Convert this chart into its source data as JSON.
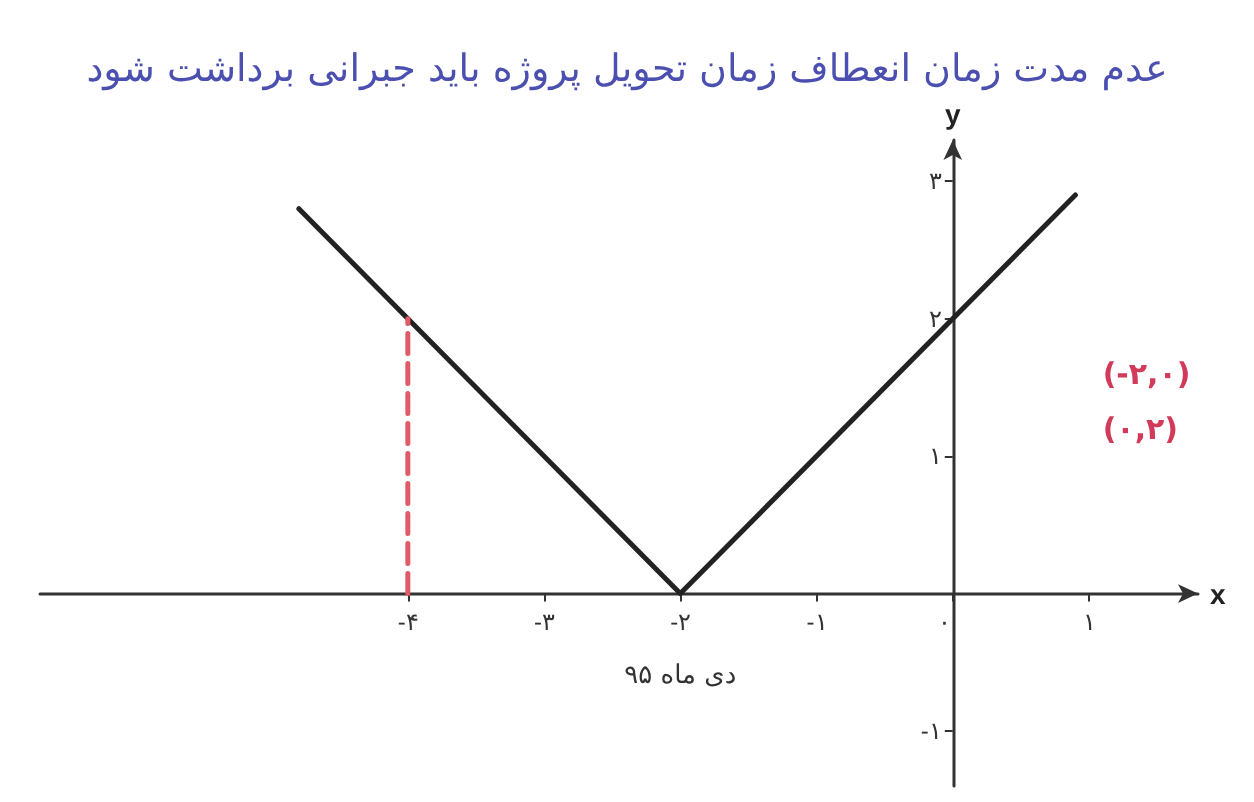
{
  "chart_data": {
    "type": "line",
    "title": "عدم مدت زمان انعطاف زمان تحویل پروژه باید جبرانی برداشت شود",
    "xlabel": "x",
    "ylabel": "y",
    "annotations": [
      "دی ماه ۹۵",
      "(-۲,۰)",
      "(۰,۲)"
    ],
    "series": [
      {
        "color": "#222222",
        "x": [
          -4.8,
          -2,
          0.9
        ],
        "values": [
          2.8,
          0,
          2.9
        ]
      },
      {
        "color": "#e05a6a",
        "x": [
          -4,
          -4
        ],
        "values": [
          0,
          2
        ],
        "line_style": "dashed"
      }
    ],
    "xlim": [
      -6.7,
      1.8
    ],
    "ylim": [
      -1.4,
      3.3
    ],
    "xticks": [
      {
        "value": -4,
        "label": "-۴"
      },
      {
        "value": -3,
        "label": "-۳"
      },
      {
        "value": -2,
        "label": "-۲"
      },
      {
        "value": -1,
        "label": "-۱"
      },
      {
        "value": 0,
        "label": "۰"
      },
      {
        "value": 1,
        "label": "۱"
      }
    ],
    "yticks": [
      {
        "value": -1,
        "label": "-۱"
      },
      {
        "value": 1,
        "label": "۱"
      },
      {
        "value": 2,
        "label": "۲"
      },
      {
        "value": 3,
        "label": "۳"
      }
    ],
    "grid": false,
    "marker": "none",
    "line_style": "solid"
  }
}
